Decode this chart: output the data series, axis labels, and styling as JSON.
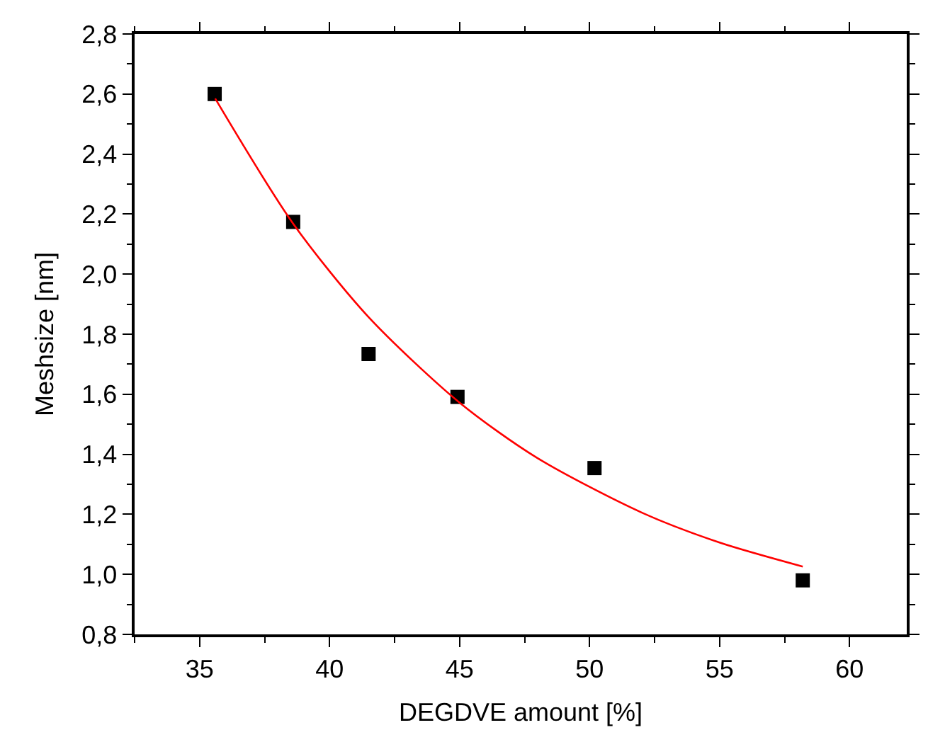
{
  "chart_data": {
    "type": "scatter",
    "xlabel": "DEGDVE amount [%]",
    "ylabel": "Meshsize [nm]",
    "series": [
      {
        "color": "#000000",
        "marker": "square",
        "x": [
          35.58,
          38.6,
          41.5,
          44.92,
          50.19,
          58.2
        ],
        "values": [
          2.6,
          2.174,
          1.734,
          1.591,
          1.354,
          0.98
        ]
      },
      {
        "type": "line",
        "color": "#ff0000",
        "marker": "none",
        "x": [
          35.6,
          38.6,
          41.5,
          45,
          48,
          52,
          55,
          58.2
        ],
        "values": [
          2.585,
          2.168,
          1.857,
          1.572,
          1.387,
          1.206,
          1.106,
          1.026
        ]
      }
    ],
    "xlim": [
      32.5,
      62.2
    ],
    "xticks": [
      35,
      40,
      45,
      50,
      55,
      60
    ],
    "ylim": [
      0.8,
      2.8
    ],
    "yticks": [
      {
        "value": 0.8,
        "label": "0,8"
      },
      {
        "value": 1.0,
        "label": "1,0"
      },
      {
        "value": 1.2,
        "label": "1,2"
      },
      {
        "value": 1.4,
        "label": "1,4"
      },
      {
        "value": 1.6,
        "label": "1,6"
      },
      {
        "value": 1.8,
        "label": "1,8"
      },
      {
        "value": 2.0,
        "label": "2,0"
      },
      {
        "value": 2.2,
        "label": "2,2"
      },
      {
        "value": 2.4,
        "label": "2,4"
      },
      {
        "value": 2.6,
        "label": "2,6"
      },
      {
        "value": 2.8,
        "label": "2,8"
      }
    ]
  }
}
